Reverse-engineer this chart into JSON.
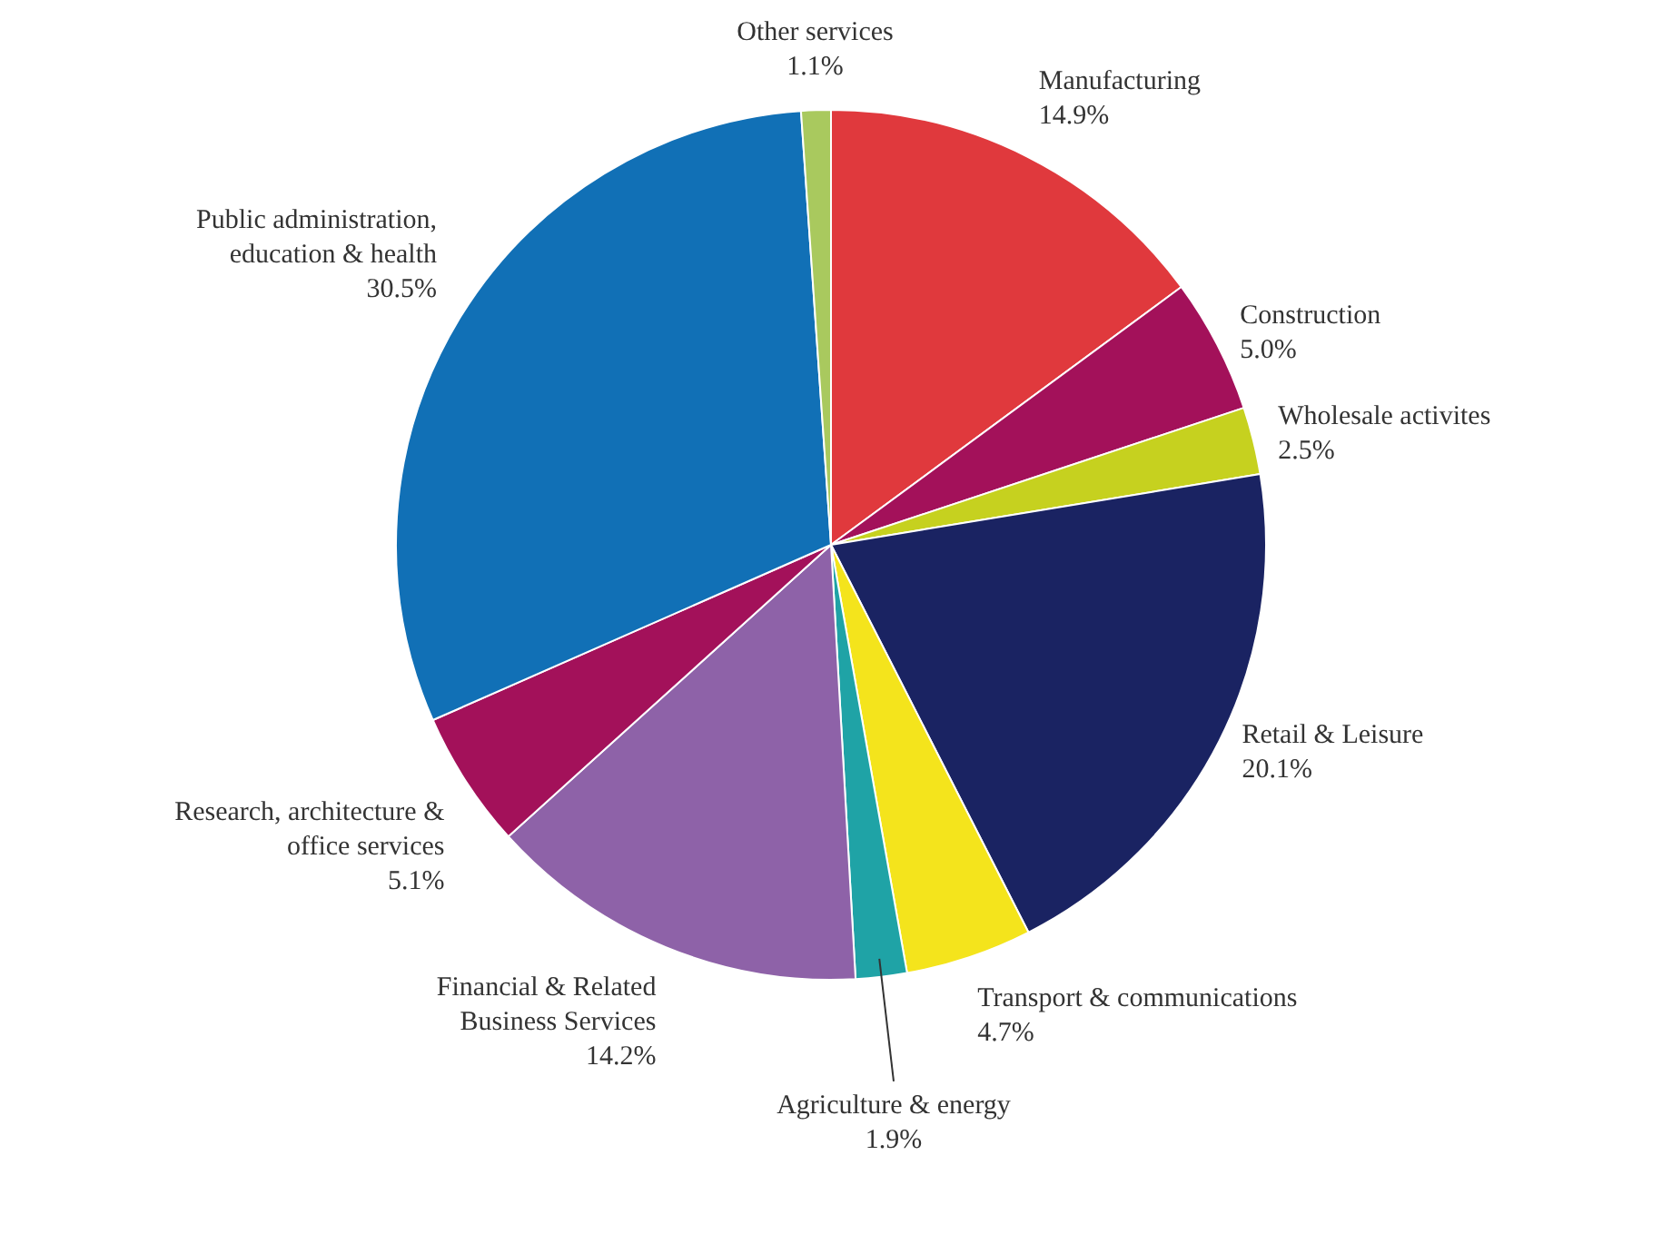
{
  "chart_data": {
    "type": "pie",
    "categories": [
      "Manufacturing",
      "Construction",
      "Wholesale activites",
      "Retail & Leisure",
      "Transport & communications",
      "Agriculture & energy",
      "Financial & Related Business Services",
      "Research, architecture & office services",
      "Public administration, education & health",
      "Other services"
    ],
    "values": [
      14.9,
      5.0,
      2.5,
      20.1,
      4.7,
      1.9,
      14.2,
      5.1,
      30.5,
      1.1
    ],
    "value_labels": [
      "14.9%",
      "5.0%",
      "2.5%",
      "20.1%",
      "4.7%",
      "1.9%",
      "14.2%",
      "5.1%",
      "30.5%",
      "1.1%"
    ],
    "colors": [
      "#e0393d",
      "#a3115a",
      "#c6d11f",
      "#1a2362",
      "#f4e41c",
      "#1fa3a6",
      "#8e62a8",
      "#a3115a",
      "#1170b6",
      "#a9c95e"
    ],
    "legend": false
  }
}
